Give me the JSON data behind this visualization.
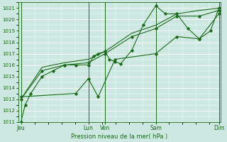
{
  "bg_color": "#cce8e0",
  "grid_color": "#ffffff",
  "line_color": "#1a6b1a",
  "marker_color": "#1a6b1a",
  "text_color": "#1a6b1a",
  "xlabel": "Pression niveau de la mer( hPa )",
  "ylim": [
    1011,
    1021.5
  ],
  "yticks": [
    1011,
    1012,
    1013,
    1014,
    1015,
    1016,
    1017,
    1018,
    1019,
    1020,
    1021
  ],
  "xlim": [
    0,
    144
  ],
  "xtick_labels": [
    "Jeu",
    "Lun",
    "Ven",
    "Sam",
    "Dim"
  ],
  "xtick_positions": [
    2,
    50,
    62,
    98,
    143
  ],
  "x_vlines": [
    2,
    50,
    62,
    98,
    143
  ],
  "series1_x": [
    2,
    5,
    9,
    17,
    25,
    33,
    41,
    50,
    54,
    57,
    62,
    65,
    69,
    73,
    81,
    89,
    98,
    105,
    113,
    121,
    129,
    137,
    143
  ],
  "series1_y": [
    1011.0,
    1012.5,
    1013.5,
    1015.0,
    1015.5,
    1016.0,
    1016.0,
    1016.0,
    1016.8,
    1017.0,
    1017.2,
    1016.5,
    1016.3,
    1016.1,
    1017.3,
    1019.5,
    1021.2,
    1020.5,
    1020.5,
    1019.2,
    1018.3,
    1019.0,
    1021.0
  ],
  "series2_x": [
    2,
    17,
    33,
    50,
    62,
    81,
    98,
    113,
    129,
    143
  ],
  "series2_y": [
    1013.0,
    1015.5,
    1016.0,
    1016.2,
    1017.0,
    1018.5,
    1019.2,
    1020.3,
    1020.3,
    1020.8
  ],
  "series3_x": [
    2,
    17,
    33,
    50,
    62,
    81,
    98,
    113,
    129,
    143
  ],
  "series3_y": [
    1013.0,
    1015.8,
    1016.2,
    1016.5,
    1017.2,
    1018.8,
    1019.5,
    1020.5,
    1020.8,
    1021.0
  ],
  "series4_x": [
    2,
    41,
    50,
    57,
    69,
    98,
    113,
    129,
    143
  ],
  "series4_y": [
    1013.2,
    1013.5,
    1014.8,
    1013.2,
    1016.5,
    1017.0,
    1018.5,
    1018.3,
    1020.5
  ]
}
